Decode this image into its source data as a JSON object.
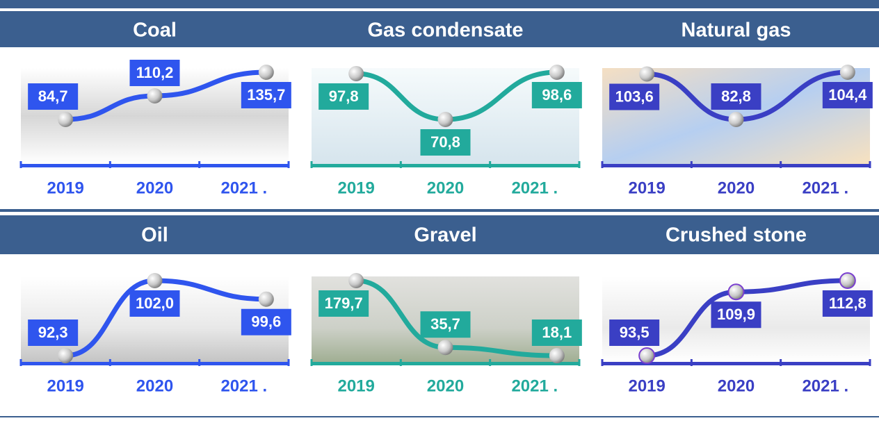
{
  "chart_data": [
    {
      "type": "line",
      "title": "Coal",
      "categories": [
        "2019",
        "2020",
        "2021 ."
      ],
      "color": "#2f55ee",
      "series": [
        {
          "color": "#2f55ee",
          "values": [
            84.7,
            110.2,
            135.7
          ],
          "value_labels": [
            "84,7",
            "110,2",
            "135,7"
          ]
        }
      ]
    },
    {
      "type": "line",
      "title": "Gas condensate",
      "categories": [
        "2019",
        "2020",
        "2021 ."
      ],
      "color": "#22aa9c",
      "series": [
        {
          "color": "#22aa9c",
          "values": [
            97.8,
            70.8,
            98.6
          ],
          "value_labels": [
            "97,8",
            "70,8",
            "98,6"
          ]
        }
      ]
    },
    {
      "type": "line",
      "title": "Natural gas",
      "categories": [
        "2019",
        "2020",
        "2021 ."
      ],
      "color": "#3a3fc4",
      "series": [
        {
          "color": "#3a3fc4",
          "values": [
            103.6,
            82.8,
            104.4
          ],
          "value_labels": [
            "103,6",
            "82,8",
            "104,4"
          ]
        }
      ]
    },
    {
      "type": "line",
      "title": "Oil",
      "categories": [
        "2019",
        "2020",
        "2021 ."
      ],
      "color": "#2f55ee",
      "series": [
        {
          "color": "#2f55ee",
          "values": [
            92.3,
            102.0,
            99.6
          ],
          "value_labels": [
            "92,3",
            "102,0",
            "99,6"
          ]
        }
      ]
    },
    {
      "type": "line",
      "title": "Gravel",
      "categories": [
        "2019",
        "2020",
        "2021 ."
      ],
      "color": "#22aa9c",
      "series": [
        {
          "color": "#22aa9c",
          "values": [
            179.7,
            35.7,
            18.1
          ],
          "value_labels": [
            "179,7",
            "35,7",
            "18,1"
          ]
        }
      ]
    },
    {
      "type": "line",
      "title": "Crushed stone",
      "categories": [
        "2019",
        "2020",
        "2021 ."
      ],
      "color": "#3a3fc4",
      "series": [
        {
          "color": "#3a3fc4",
          "values": [
            93.5,
            109.9,
            112.8
          ],
          "value_labels": [
            "93,5",
            "109,9",
            "112,8"
          ]
        }
      ]
    }
  ]
}
